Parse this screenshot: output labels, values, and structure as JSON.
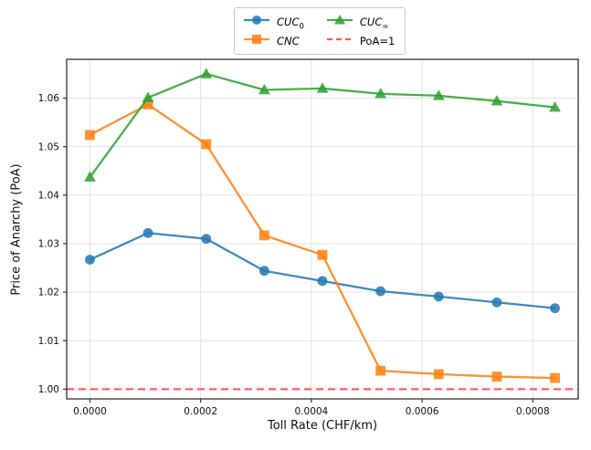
{
  "chart_data": {
    "type": "line",
    "title": "",
    "xlabel": "Toll Rate (CHF/km)",
    "ylabel": "Price of Anarchy (PoA)",
    "x": [
      0.0,
      0.000105,
      0.00021,
      0.000315,
      0.00042,
      0.000525,
      0.00063,
      0.000735,
      0.00084
    ],
    "series": [
      {
        "name": "CUC_0",
        "color": "#1f77b4",
        "marker": "circle",
        "linestyle": "solid",
        "values": [
          1.0267,
          1.0322,
          1.031,
          1.0244,
          1.0223,
          1.0202,
          1.0191,
          1.0179,
          1.0167
        ]
      },
      {
        "name": "CNC",
        "color": "#ff7f0e",
        "marker": "square",
        "linestyle": "solid",
        "values": [
          1.0524,
          1.0587,
          1.0505,
          1.0317,
          1.0277,
          1.0038,
          1.0031,
          1.0026,
          1.0023
        ]
      },
      {
        "name": "CUC_inf",
        "color": "#2ca02c",
        "marker": "triangle",
        "linestyle": "solid",
        "values": [
          1.0437,
          1.0601,
          1.065,
          1.0617,
          1.062,
          1.0609,
          1.0605,
          1.0594,
          1.0581
        ]
      }
    ],
    "reference_line": {
      "label": "PoA=1",
      "value": 1.0,
      "color": "#ff3b30",
      "linestyle": "dashed"
    },
    "xticks": {
      "values": [
        0.0,
        0.0002,
        0.0004,
        0.0006,
        0.0008
      ],
      "labels": [
        "0.0000",
        "0.0002",
        "0.0004",
        "0.0006",
        "0.0008"
      ]
    },
    "yticks": {
      "values": [
        1.0,
        1.01,
        1.02,
        1.03,
        1.04,
        1.05,
        1.06
      ],
      "labels": [
        "1.00",
        "1.01",
        "1.02",
        "1.03",
        "1.04",
        "1.05",
        "1.06"
      ]
    },
    "xlim": [
      -4.2e-05,
      0.000882
    ],
    "ylim": [
      0.998,
      1.068
    ],
    "grid": true,
    "legend_position": "above-plot-center"
  },
  "legend": {
    "entries": [
      {
        "base": "CUC",
        "sub": "0",
        "color": "#1f77b4",
        "marker": "circle",
        "line": "solid",
        "italic": true
      },
      {
        "base": "CNC",
        "sub": "",
        "color": "#ff7f0e",
        "marker": "square",
        "line": "solid",
        "italic": true
      },
      {
        "base": "CUC",
        "sub": "∞",
        "color": "#2ca02c",
        "marker": "triangle",
        "line": "solid",
        "italic": true
      },
      {
        "base": "PoA=1",
        "sub": "",
        "color": "#ff3b30",
        "marker": "none",
        "line": "dashed",
        "italic": false
      }
    ]
  }
}
